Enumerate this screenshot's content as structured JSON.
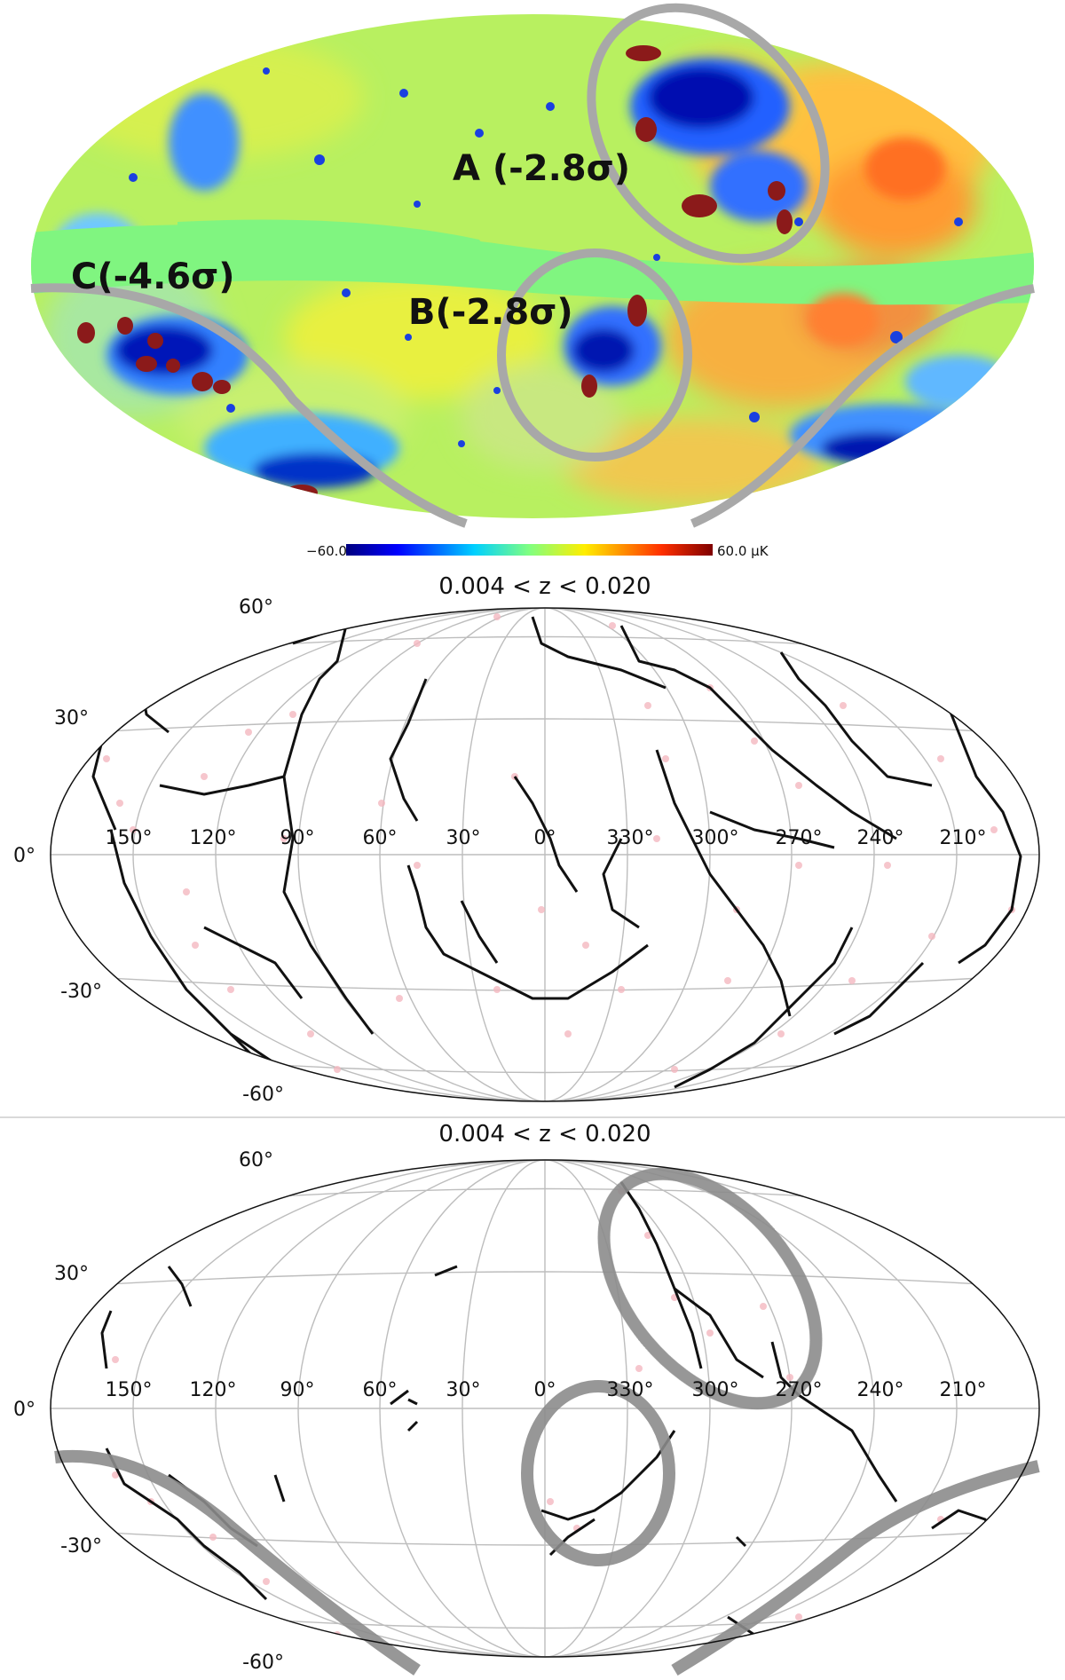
{
  "temperature_map": {
    "regions": [
      {
        "id": "A",
        "label": "A (-2.8σ)"
      },
      {
        "id": "B",
        "label": "B(-2.8σ)"
      },
      {
        "id": "C",
        "label": "C(-4.6σ)"
      }
    ],
    "colorbar": {
      "min_label": "−60.0",
      "max_label": "60.0 μK",
      "colors": [
        "#00007f",
        "#0040ff",
        "#30c8ff",
        "#80ff80",
        "#ffff30",
        "#ff8000",
        "#7f0000"
      ]
    },
    "colors": {
      "background_mask": "#80f580",
      "cold_spot_dark": "#8b1a1a",
      "contour": "#a8a8a8"
    }
  },
  "filament_maps": [
    {
      "title": "0.004 < z < 0.020",
      "lon_ticks": [
        "150°",
        "120°",
        "90°",
        "60°",
        "30°",
        "0°",
        "330°",
        "300°",
        "270°",
        "240°",
        "210°"
      ],
      "lat_ticks": [
        "60°",
        "30°",
        "0°",
        "-30°",
        "-60°"
      ],
      "masked": false
    },
    {
      "title": "0.004 < z < 0.020",
      "lon_ticks": [
        "150°",
        "120°",
        "90°",
        "60°",
        "30°",
        "0°",
        "330°",
        "300°",
        "270°",
        "240°",
        "210°"
      ],
      "lat_ticks": [
        "60°",
        "30°",
        "0°",
        "-30°",
        "-60°"
      ],
      "masked": true
    }
  ],
  "colors": {
    "filament": "#111111",
    "galaxy_points": "#f4b8c0",
    "grid": "#bdbdbd",
    "mask_contour": "#8c8c8c"
  }
}
